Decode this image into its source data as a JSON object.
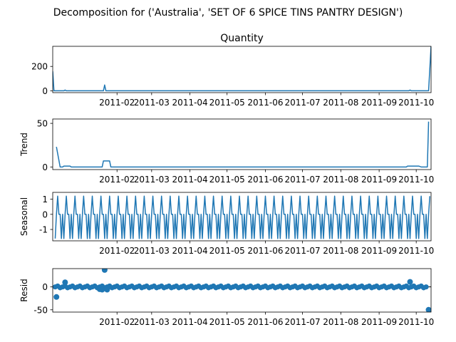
{
  "figure": {
    "suptitle": "Decomposition for ('Australia', 'SET OF 6 SPICE TINS PANTRY DESIGN')"
  },
  "chart_data": [
    {
      "type": "line",
      "title": "Quantity",
      "ylabel": "",
      "xlim": [
        "2010-12-11",
        "2011-10-13"
      ],
      "ylim": [
        -15,
        365
      ],
      "yticks": [
        0,
        200
      ],
      "xticks": [
        "2011-02",
        "2011-03",
        "2011-04",
        "2011-05",
        "2011-06",
        "2011-07",
        "2011-08",
        "2011-09",
        "2011-10"
      ],
      "series": [
        {
          "color": "#1f77b4",
          "points": [
            [
              "2010-12-11",
              160
            ],
            [
              "2010-12-12",
              0
            ],
            [
              "2010-12-20",
              0
            ],
            [
              "2010-12-21",
              6
            ],
            [
              "2010-12-22",
              0
            ],
            [
              "2011-01-21",
              0
            ],
            [
              "2011-01-22",
              48
            ],
            [
              "2011-01-23",
              0
            ],
            [
              "2011-09-25",
              0
            ],
            [
              "2011-09-26",
              6
            ],
            [
              "2011-09-27",
              0
            ],
            [
              "2011-10-11",
              0
            ],
            [
              "2011-10-13",
              365
            ]
          ]
        }
      ]
    },
    {
      "type": "line",
      "title": "",
      "ylabel": "Trend",
      "xlim": [
        "2010-12-11",
        "2011-10-13"
      ],
      "ylim": [
        -3,
        55
      ],
      "yticks": [
        0,
        50
      ],
      "xticks": [
        "2011-02",
        "2011-03",
        "2011-04",
        "2011-05",
        "2011-06",
        "2011-07",
        "2011-08",
        "2011-09",
        "2011-10"
      ],
      "series": [
        {
          "color": "#1f77b4",
          "points": [
            [
              "2010-12-14",
              23
            ],
            [
              "2010-12-17",
              0
            ],
            [
              "2010-12-19",
              0
            ],
            [
              "2010-12-20",
              1
            ],
            [
              "2010-12-25",
              1
            ],
            [
              "2010-12-26",
              0
            ],
            [
              "2011-01-20",
              0
            ],
            [
              "2011-01-21",
              6.9
            ],
            [
              "2011-01-26",
              6.9
            ],
            [
              "2011-01-27",
              0
            ],
            [
              "2011-09-23",
              0
            ],
            [
              "2011-09-24",
              1
            ],
            [
              "2011-10-03",
              1
            ],
            [
              "2011-10-05",
              0
            ],
            [
              "2011-10-10",
              0
            ],
            [
              "2011-10-11",
              52
            ]
          ]
        }
      ]
    },
    {
      "type": "line",
      "title": "",
      "ylabel": "Seasonal",
      "xlim": [
        "2010-12-11",
        "2011-10-13"
      ],
      "ylim": [
        -1.75,
        1.45
      ],
      "yticks": [
        -1,
        0,
        1
      ],
      "xticks": [
        "2011-02",
        "2011-03",
        "2011-04",
        "2011-05",
        "2011-06",
        "2011-07",
        "2011-08",
        "2011-09",
        "2011-10"
      ],
      "seasonal": {
        "start": "2010-12-13",
        "period_days": 7,
        "pattern": [
          -1.6,
          0,
          1.2,
          0,
          0,
          -1.6,
          0
        ]
      },
      "x_end": "2011-10-12"
    },
    {
      "type": "scatter",
      "title": "",
      "ylabel": "Resid",
      "xlim": [
        "2010-12-11",
        "2011-10-13"
      ],
      "ylim": [
        -55,
        40
      ],
      "yticks": [
        -50,
        0
      ],
      "xticks": [
        "2011-02",
        "2011-03",
        "2011-04",
        "2011-05",
        "2011-06",
        "2011-07",
        "2011-08",
        "2011-09",
        "2011-10"
      ],
      "baseline": 0,
      "baseline_range": [
        "2010-12-11",
        "2011-10-13"
      ],
      "dense_range": [
        "2010-12-13",
        "2011-10-10"
      ],
      "dense_step_days": 2,
      "series": [
        {
          "color": "#1f77b4",
          "points": [
            [
              "2010-12-14",
              -22
            ],
            [
              "2010-12-21",
              10
            ],
            [
              "2011-01-18",
              -5
            ],
            [
              "2011-01-20",
              -6
            ],
            [
              "2011-01-22",
              37
            ],
            [
              "2011-01-24",
              -6
            ],
            [
              "2011-09-26",
              11
            ],
            [
              "2011-10-11",
              -50
            ]
          ]
        }
      ]
    }
  ]
}
